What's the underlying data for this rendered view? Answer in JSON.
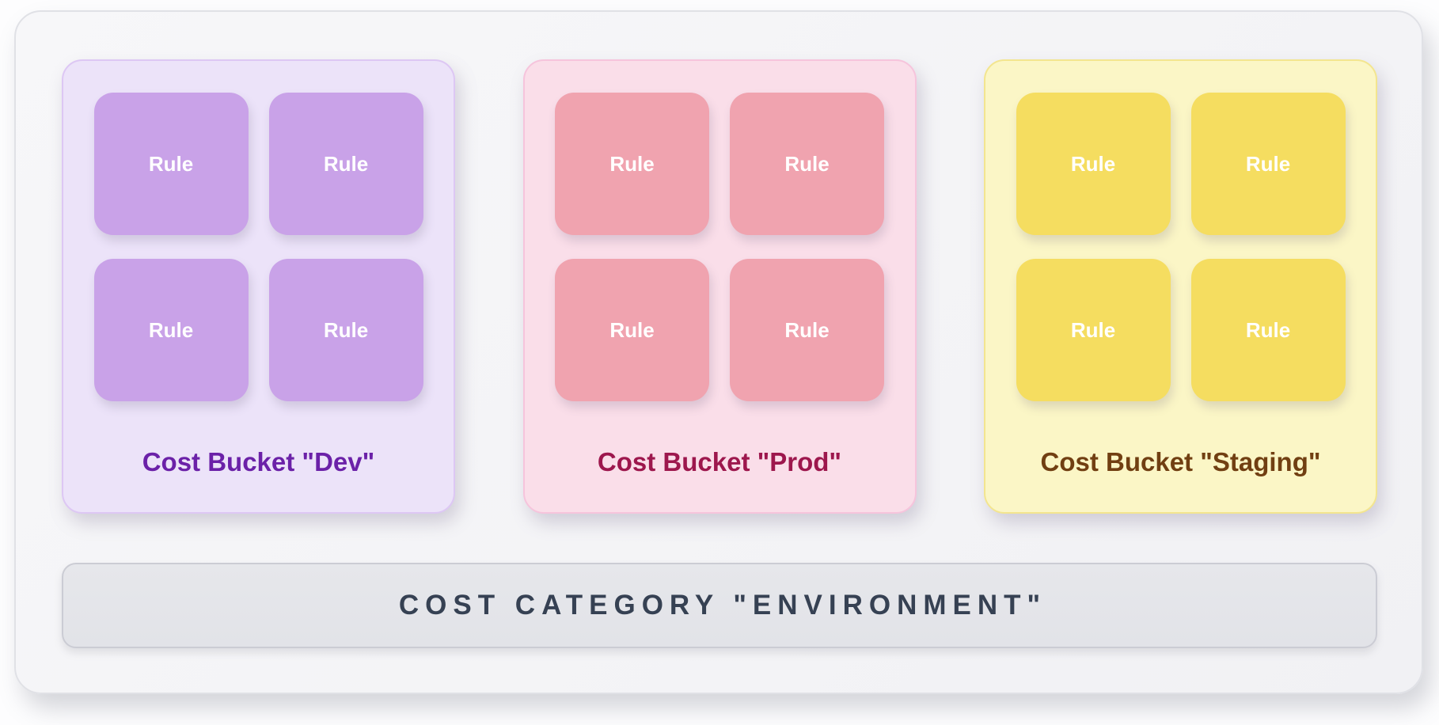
{
  "diagram": {
    "rule_label": "Rule",
    "buckets": [
      {
        "name": "dev",
        "title": "Cost Bucket \"Dev\"",
        "rule_count": 4,
        "panel-bg": "#ece3f9",
        "panel-border": "#ddc7f4",
        "rule-color": "#c9a2e8",
        "title-color": "#6b21a8"
      },
      {
        "name": "prod",
        "title": "Cost Bucket \"Prod\"",
        "rule_count": 4,
        "panel-bg": "#fadee9",
        "panel-border": "#f6c4dc",
        "rule-color": "#f0a3af",
        "title-color": "#9d174d"
      },
      {
        "name": "staging",
        "title": "Cost Bucket \"Staging\"",
        "rule_count": 4,
        "panel-bg": "#fbf6c6",
        "panel-border": "#f3e58f",
        "rule-color": "#f5dd60",
        "title-color": "#713f12"
      }
    ],
    "category_bar": {
      "label": "COST CATEGORY \"ENVIRONMENT\"",
      "bg": "#e4e5ea",
      "border": "#cbccd4",
      "text_color": "#364153"
    }
  }
}
